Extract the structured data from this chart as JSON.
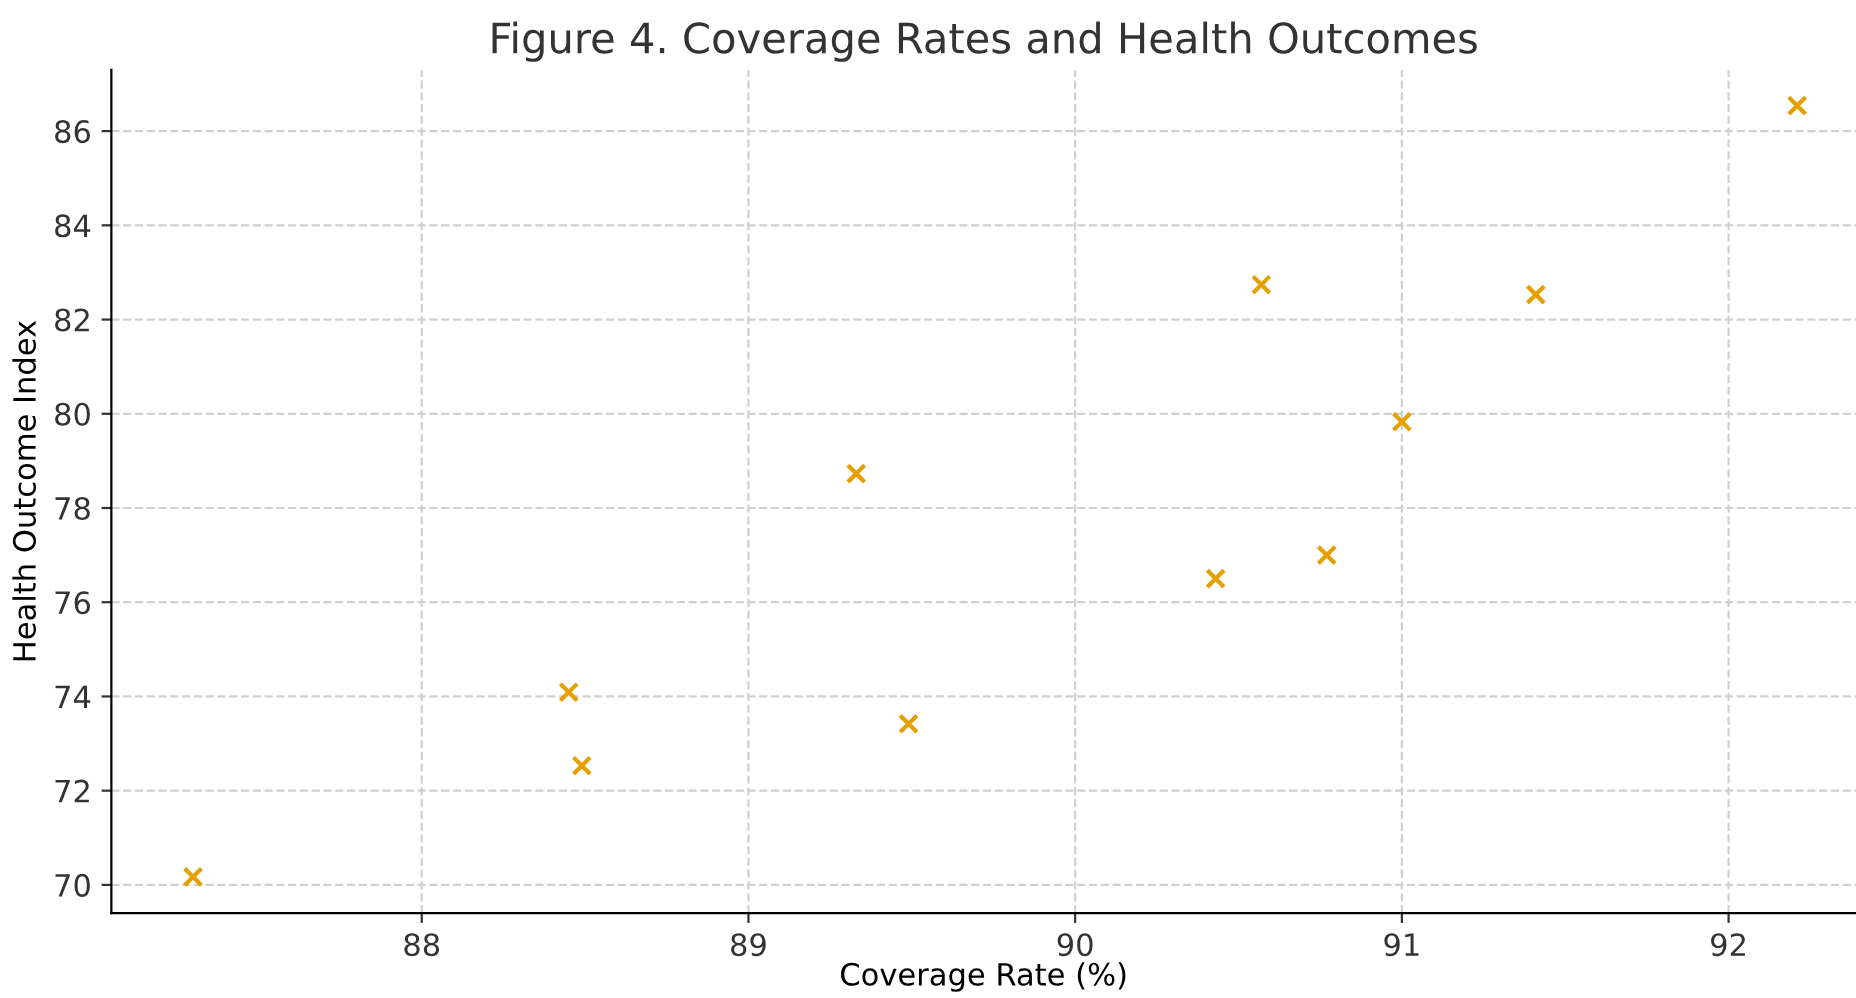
{
  "chart_data": {
    "type": "scatter",
    "title": "Figure 4. Coverage Rates and Health Outcomes",
    "xlabel": "Coverage Rate (%)",
    "ylabel": "Health Outcome Index",
    "x": [
      87.3,
      88.45,
      88.49,
      89.33,
      89.49,
      90.43,
      90.57,
      90.77,
      91.0,
      91.41,
      92.21
    ],
    "series": [
      {
        "color": "#e69f00",
        "values": [
          70.17,
          74.09,
          72.53,
          78.73,
          73.42,
          76.5,
          82.74,
          77.0,
          79.83,
          82.53,
          86.54
        ]
      }
    ],
    "marker": "cross",
    "grid": true,
    "xlim": [
      87.05,
      92.39
    ],
    "xticks": [
      88,
      89,
      90,
      91,
      92
    ],
    "ylim": [
      69.4,
      87.3
    ],
    "yticks": [
      70,
      72,
      74,
      76,
      78,
      80,
      82,
      84,
      86
    ]
  }
}
